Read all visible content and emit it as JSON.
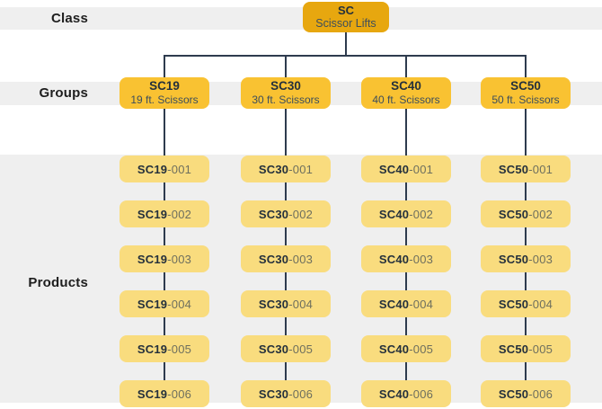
{
  "labels": {
    "class": "Class",
    "groups": "Groups",
    "products": "Products"
  },
  "root": {
    "code": "SC",
    "name": "Scissor Lifts"
  },
  "groups": [
    {
      "code": "SC19",
      "name": "19 ft. Scissors",
      "products": [
        {
          "code": "SC19",
          "suffix": "-001"
        },
        {
          "code": "SC19",
          "suffix": "-002"
        },
        {
          "code": "SC19",
          "suffix": "-003"
        },
        {
          "code": "SC19",
          "suffix": "-004"
        },
        {
          "code": "SC19",
          "suffix": "-005"
        },
        {
          "code": "SC19",
          "suffix": "-006"
        }
      ]
    },
    {
      "code": "SC30",
      "name": "30 ft. Scissors",
      "products": [
        {
          "code": "SC30",
          "suffix": "-001"
        },
        {
          "code": "SC30",
          "suffix": "-002"
        },
        {
          "code": "SC30",
          "suffix": "-003"
        },
        {
          "code": "SC30",
          "suffix": "-004"
        },
        {
          "code": "SC30",
          "suffix": "-005"
        },
        {
          "code": "SC30",
          "suffix": "-006"
        }
      ]
    },
    {
      "code": "SC40",
      "name": "40 ft. Scissors",
      "products": [
        {
          "code": "SC40",
          "suffix": "-001"
        },
        {
          "code": "SC40",
          "suffix": "-002"
        },
        {
          "code": "SC40",
          "suffix": "-003"
        },
        {
          "code": "SC40",
          "suffix": "-004"
        },
        {
          "code": "SC40",
          "suffix": "-005"
        },
        {
          "code": "SC40",
          "suffix": "-006"
        }
      ]
    },
    {
      "code": "SC50",
      "name": "50 ft. Scissors",
      "products": [
        {
          "code": "SC50",
          "suffix": "-001"
        },
        {
          "code": "SC50",
          "suffix": "-002"
        },
        {
          "code": "SC50",
          "suffix": "-003"
        },
        {
          "code": "SC50",
          "suffix": "-004"
        },
        {
          "code": "SC50",
          "suffix": "-005"
        },
        {
          "code": "SC50",
          "suffix": "-006"
        }
      ]
    }
  ],
  "colors": {
    "background": "#FFFFFF",
    "band_gray": "#EFEFEF",
    "root_box": "#E7A70F",
    "group_box": "#F9C232",
    "product_box": "#F9DC7E",
    "line": "#2E3B4E",
    "code_text": "#24303C",
    "navy_text": "#3D4E5C",
    "suffix_text": "#6E6F5E",
    "label_text": "#1E1E1E"
  }
}
